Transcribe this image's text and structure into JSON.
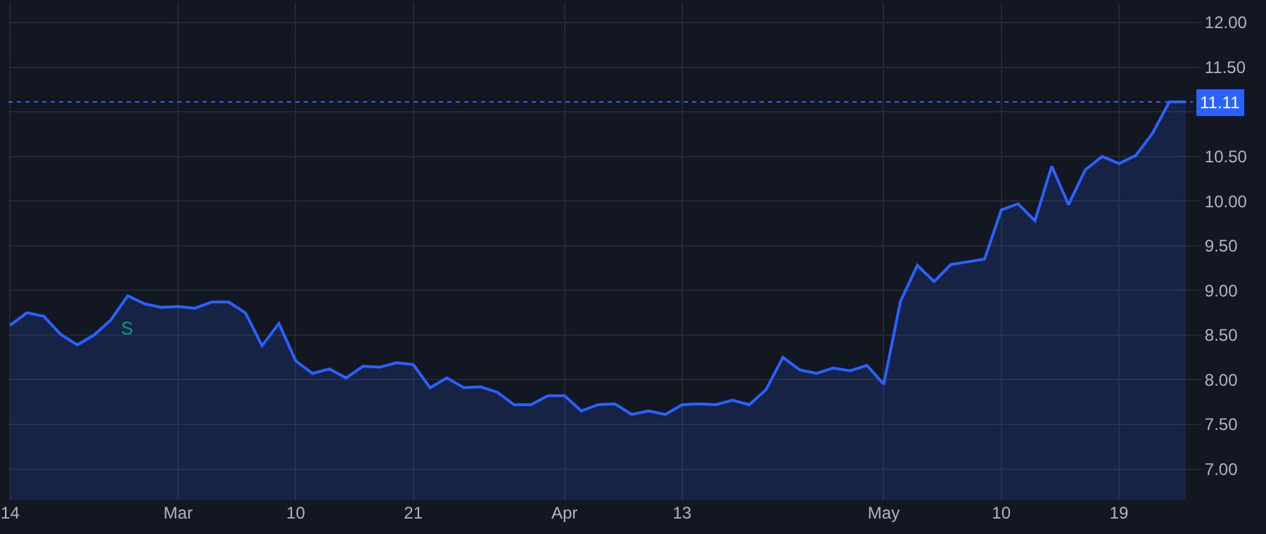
{
  "chart_data": {
    "type": "area",
    "categories": [
      "14",
      null,
      null,
      null,
      null,
      null,
      null,
      null,
      null,
      null,
      "Mar",
      null,
      null,
      null,
      null,
      null,
      null,
      "10",
      null,
      null,
      null,
      null,
      null,
      null,
      "21",
      null,
      null,
      null,
      null,
      null,
      null,
      null,
      null,
      "Apr",
      null,
      null,
      null,
      null,
      null,
      null,
      "13",
      null,
      null,
      null,
      null,
      null,
      null,
      null,
      null,
      null,
      null,
      null,
      "May",
      null,
      null,
      null,
      null,
      null,
      null,
      "10",
      null,
      null,
      null,
      null,
      null,
      null,
      "19",
      null,
      null,
      null,
      null
    ],
    "series": [
      {
        "color": "#2962ff",
        "values": [
          8.61,
          8.75,
          8.71,
          8.51,
          8.39,
          8.5,
          8.67,
          8.94,
          8.85,
          8.81,
          8.82,
          8.8,
          8.87,
          8.87,
          8.75,
          8.38,
          8.63,
          8.21,
          8.07,
          8.12,
          8.02,
          8.15,
          8.14,
          8.19,
          8.17,
          7.91,
          8.02,
          7.91,
          7.92,
          7.86,
          7.72,
          7.72,
          7.82,
          7.82,
          7.65,
          7.72,
          7.73,
          7.61,
          7.65,
          7.61,
          7.72,
          7.73,
          7.72,
          7.77,
          7.72,
          7.89,
          8.25,
          8.11,
          8.07,
          8.13,
          8.1,
          8.16,
          7.95,
          8.88,
          9.28,
          9.1,
          9.29,
          9.32,
          9.35,
          9.9,
          9.97,
          9.78,
          10.39,
          9.96,
          10.35,
          10.5,
          10.42,
          10.51,
          10.76,
          11.11,
          11.11
        ]
      }
    ],
    "ylim": [
      6.65,
      12.22
    ],
    "yticks": [
      {
        "value": 7,
        "label": "7.00"
      },
      {
        "value": 7.5,
        "label": "7.50"
      },
      {
        "value": 8,
        "label": "8.00"
      },
      {
        "value": 8.5,
        "label": "8.50"
      },
      {
        "value": 9,
        "label": "9.00"
      },
      {
        "value": 9.5,
        "label": "9.50"
      },
      {
        "value": 10,
        "label": "10.00"
      },
      {
        "value": 10.5,
        "label": "10.50"
      },
      {
        "value": 11,
        "label": null
      },
      {
        "value": 11.5,
        "label": "11.50"
      },
      {
        "value": 12,
        "label": "12.00"
      }
    ],
    "ref_lines": [
      {
        "axis": "y",
        "value": 11.11,
        "label": "11.11",
        "color": "#2962ff",
        "line_style": "dotted"
      }
    ],
    "annotations": [
      {
        "text": "S",
        "y": 8.94
      }
    ],
    "grid": true,
    "legend": false,
    "marker": "none"
  }
}
